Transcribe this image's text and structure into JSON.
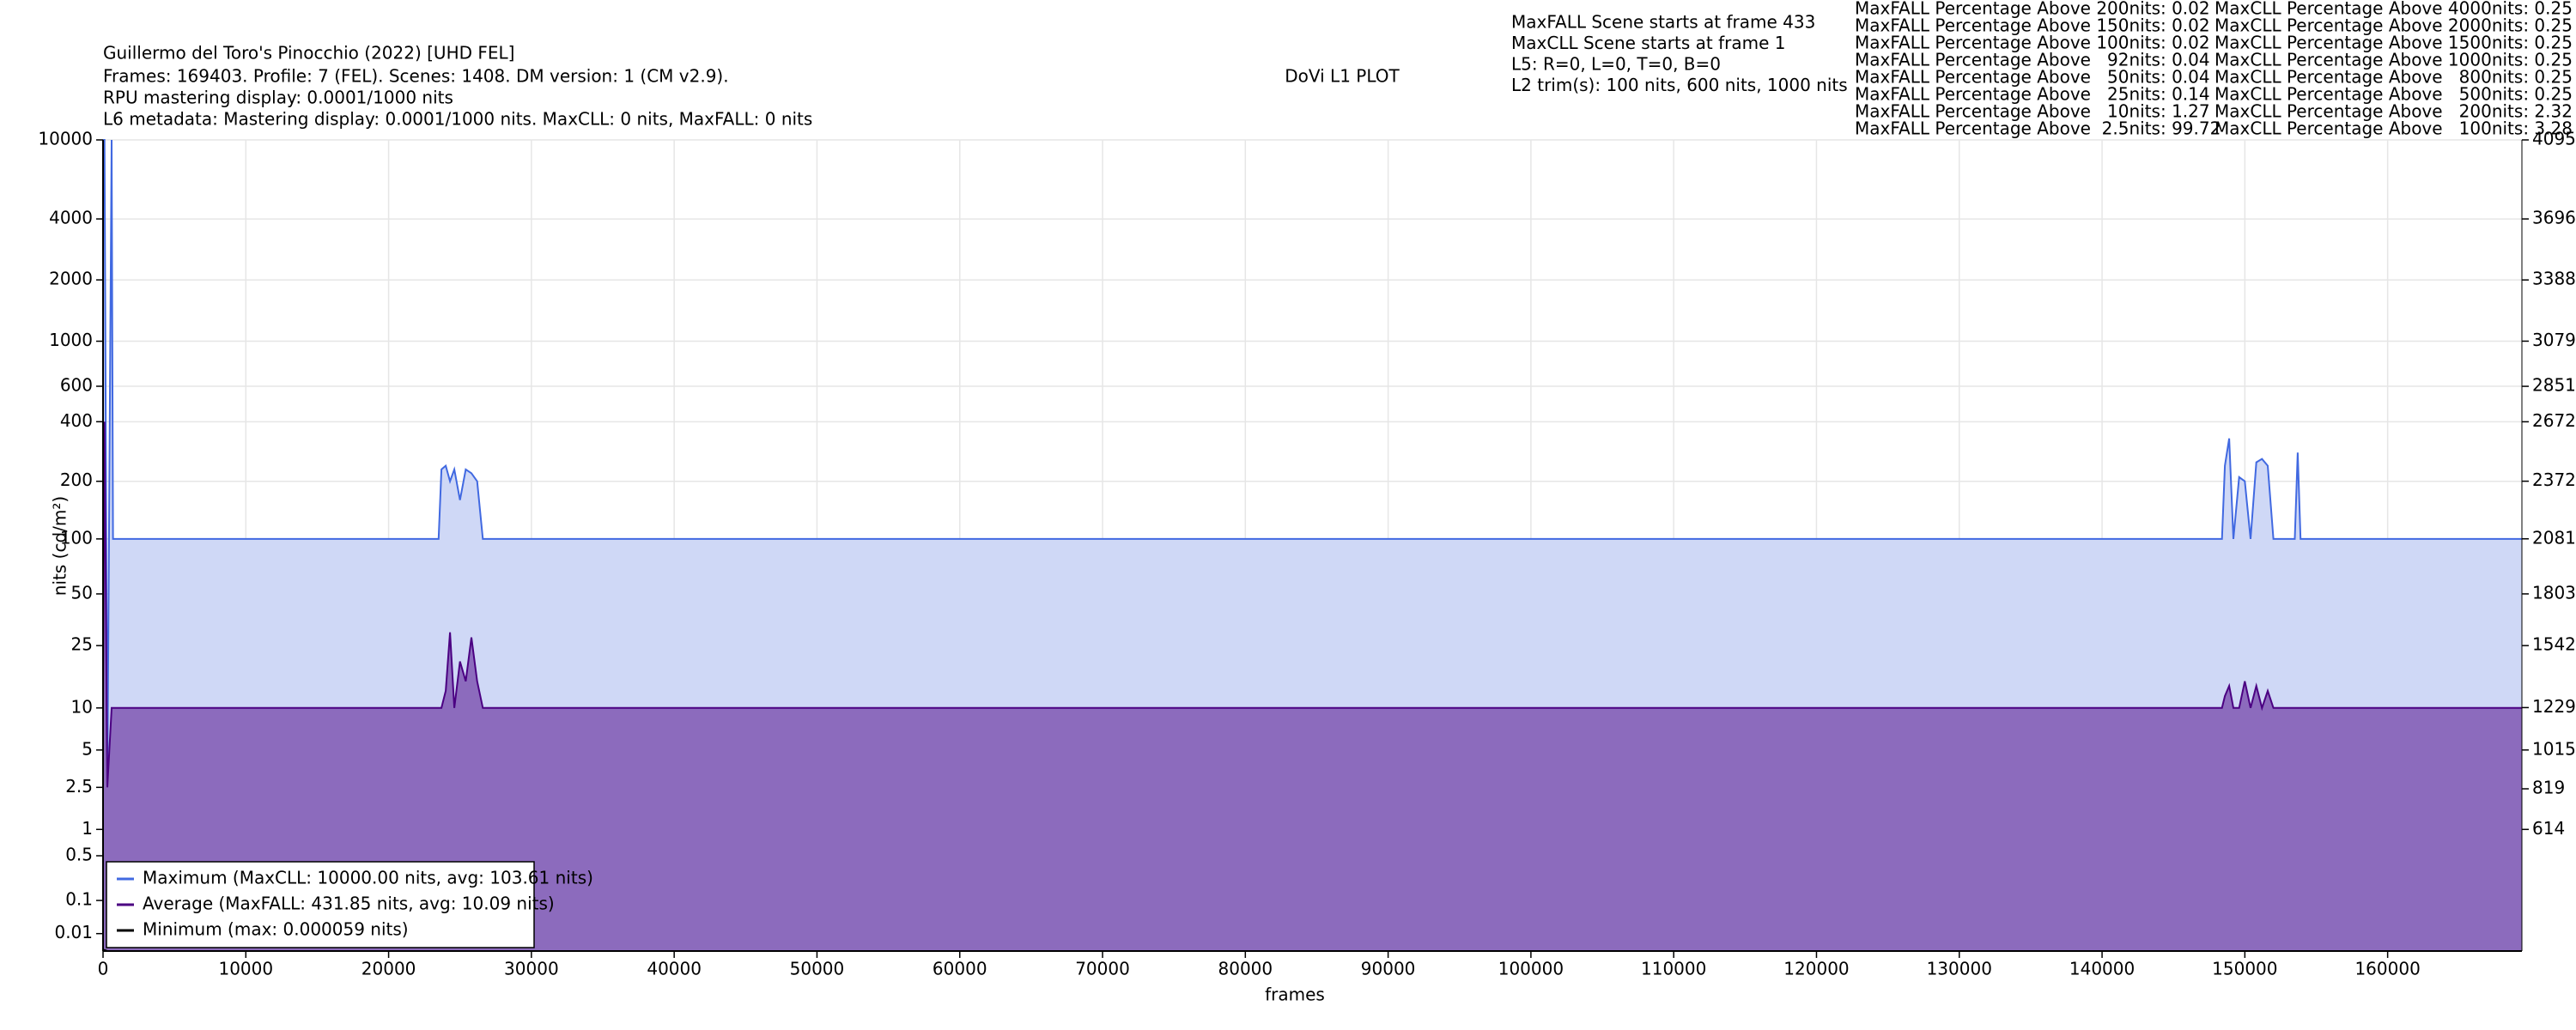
{
  "chart_data": {
    "type": "line",
    "title": "Guillermo del Toro's Pinocchio (2022) [UHD FEL]",
    "subtitle_lines": [
      "Frames: 169403. Profile: 7 (FEL). Scenes: 1408. DM version: 1 (CM v2.9).",
      "RPU mastering display: 0.0001/1000 nits",
      "L6 metadata: Mastering display: 0.0001/1000 nits. MaxCLL: 0 nits, MaxFALL: 0 nits"
    ],
    "plot_title": "DoVi L1 PLOT",
    "info_lines": [
      "MaxFALL Scene starts at frame 433",
      "MaxCLL Scene starts at frame 1",
      "L5: R=0, L=0, T=0, B=0",
      "L2 trim(s): 100 nits, 600 nits, 1000 nits"
    ],
    "maxfall_stats": [
      "MaxFALL Percentage Above 200nits: 0.02",
      "MaxFALL Percentage Above 150nits: 0.02",
      "MaxFALL Percentage Above 100nits: 0.02",
      "MaxFALL Percentage Above   92nits: 0.04",
      "MaxFALL Percentage Above   50nits: 0.04",
      "MaxFALL Percentage Above   25nits: 0.14",
      "MaxFALL Percentage Above   10nits: 1.27",
      "MaxFALL Percentage Above  2.5nits: 99.72"
    ],
    "maxcll_stats": [
      "MaxCLL Percentage Above 4000nits: 0.25",
      "MaxCLL Percentage Above 2000nits: 0.25",
      "MaxCLL Percentage Above 1500nits: 0.25",
      "MaxCLL Percentage Above 1000nits: 0.25",
      "MaxCLL Percentage Above   800nits: 0.25",
      "MaxCLL Percentage Above   500nits: 0.25",
      "MaxCLL Percentage Above   200nits: 2.32",
      "MaxCLL Percentage Above   100nits: 3.28"
    ],
    "x_label": "frames",
    "y_label": "nits (cd/m²)",
    "yscale": "pq",
    "grid": true,
    "legend": "lower left",
    "xlim": [
      0,
      169403
    ],
    "xticks": [
      0,
      10000,
      20000,
      30000,
      40000,
      50000,
      60000,
      70000,
      80000,
      90000,
      100000,
      110000,
      120000,
      130000,
      140000,
      150000,
      160000
    ],
    "ylim": [
      0,
      10000
    ],
    "yticks": [
      0.01,
      0.1,
      0.5,
      1,
      2.5,
      5,
      10,
      25,
      50,
      100,
      200,
      400,
      600,
      1000,
      2000,
      4000,
      10000
    ],
    "y2lim": [
      0,
      4095
    ],
    "y2ticks": [
      614,
      819,
      1015,
      1229,
      1542,
      1803,
      2081,
      2372,
      2672,
      2851,
      3079,
      3388,
      3696,
      4095
    ],
    "x": [
      0,
      100,
      300,
      600,
      700,
      23500,
      23700,
      24000,
      24300,
      24600,
      25000,
      25400,
      25800,
      26200,
      26600,
      26800,
      148400,
      148600,
      148900,
      149200,
      149600,
      150000,
      150400,
      150800,
      151200,
      151600,
      152000,
      152200,
      153500,
      153700,
      153900,
      169403
    ],
    "series": [
      {
        "name": "Maximum (MaxCLL: 10000.00 nits, avg: 103.61 nits)",
        "color": "#4169e1",
        "fill": "#cfd8f6",
        "values": [
          10000,
          10000,
          2.5,
          10000,
          100,
          100,
          230,
          240,
          200,
          230,
          160,
          230,
          220,
          200,
          100,
          100,
          100,
          240,
          330,
          100,
          210,
          200,
          100,
          250,
          260,
          240,
          100,
          100,
          100,
          280,
          100,
          100
        ]
      },
      {
        "name": "Average (MaxFALL: 431.85 nits, avg: 10.09 nits)",
        "color": "#4b0082",
        "fill": "#8c6bbd",
        "values": [
          10,
          400,
          2.5,
          10,
          10,
          10,
          10,
          13,
          30,
          10,
          20,
          15,
          28,
          15,
          10,
          10,
          10,
          12,
          14,
          10,
          10,
          15,
          10,
          14,
          10,
          13,
          10,
          10,
          10,
          10,
          10,
          10
        ]
      },
      {
        "name": "Minimum (max: 0.000059 nits)",
        "color": "#000000",
        "values": [
          0,
          5.9e-05,
          0,
          0,
          0,
          0,
          0,
          0,
          0,
          0,
          0,
          0,
          0,
          0,
          0,
          0,
          0,
          0,
          0,
          0,
          0,
          0,
          0,
          0,
          0,
          0,
          0,
          0,
          0,
          0,
          0,
          0
        ]
      }
    ]
  }
}
